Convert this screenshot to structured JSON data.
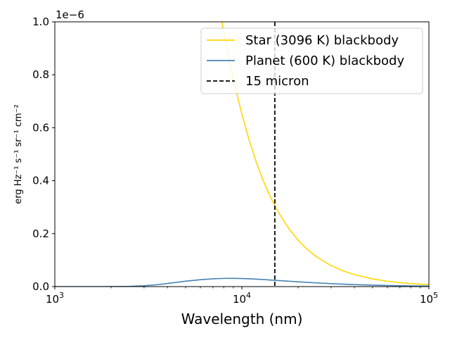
{
  "chart_data": {
    "type": "line",
    "xlabel": "Wavelength (nm)",
    "ylabel": "erg Hz⁻¹ s⁻¹ sr⁻¹ cm⁻²",
    "y_offset_label": "1e−6",
    "xscale": "log",
    "xlim": [
      1000,
      100000
    ],
    "ylim": [
      0,
      1.0
    ],
    "y_multiplier": 1e-06,
    "x_ticks": [
      {
        "value": 1000,
        "base": "10",
        "exp": "3"
      },
      {
        "value": 10000,
        "base": "10",
        "exp": "4"
      },
      {
        "value": 100000,
        "base": "10",
        "exp": "5"
      }
    ],
    "y_ticks": [
      {
        "value": 0.0,
        "label": "0.0"
      },
      {
        "value": 0.2,
        "label": "0.2"
      },
      {
        "value": 0.4,
        "label": "0.4"
      },
      {
        "value": 0.6,
        "label": "0.6"
      },
      {
        "value": 0.8,
        "label": "0.8"
      },
      {
        "value": 1.0,
        "label": "1.0"
      }
    ],
    "legend_position": "upper-right",
    "grid": false,
    "series": [
      {
        "name": "Star (3096 K) blackbody",
        "color": "#ffd700",
        "style": "solid",
        "x": [
          7800,
          8000,
          8500,
          9000,
          9500,
          10000,
          11000,
          12000,
          13000,
          14000,
          15000,
          16000,
          18000,
          20000,
          22000,
          25000,
          30000,
          35000,
          40000,
          50000,
          60000,
          70000,
          80000,
          90000,
          100000
        ],
        "values": [
          1.005,
          0.963,
          0.868,
          0.786,
          0.714,
          0.651,
          0.547,
          0.465,
          0.4,
          0.348,
          0.305,
          0.27,
          0.215,
          0.175,
          0.145,
          0.113,
          0.0792,
          0.0586,
          0.0451,
          0.0291,
          0.0203,
          0.015,
          0.0115,
          0.0091,
          0.0074
        ]
      },
      {
        "name": "Planet (600 K) blackbody",
        "color": "#4682b4",
        "style": "solid",
        "x": [
          1000,
          2000,
          2500,
          3000,
          3500,
          4000,
          5000,
          6000,
          7000,
          8000,
          9000,
          10000,
          11000,
          12000,
          14000,
          16000,
          20000,
          25000,
          30000,
          40000,
          50000,
          70000,
          100000
        ],
        "values": [
          0.0,
          6.5e-05,
          0.00075,
          0.00305,
          0.007,
          0.0118,
          0.0204,
          0.0262,
          0.0295,
          0.0309,
          0.0311,
          0.0305,
          0.0294,
          0.0281,
          0.0252,
          0.0225,
          0.018,
          0.014,
          0.0112,
          0.0075,
          0.0055,
          0.0032,
          0.0017
        ]
      }
    ],
    "vlines": [
      {
        "name": "15 micron",
        "x": 15000,
        "color": "#000000",
        "style": "dashed"
      }
    ]
  }
}
